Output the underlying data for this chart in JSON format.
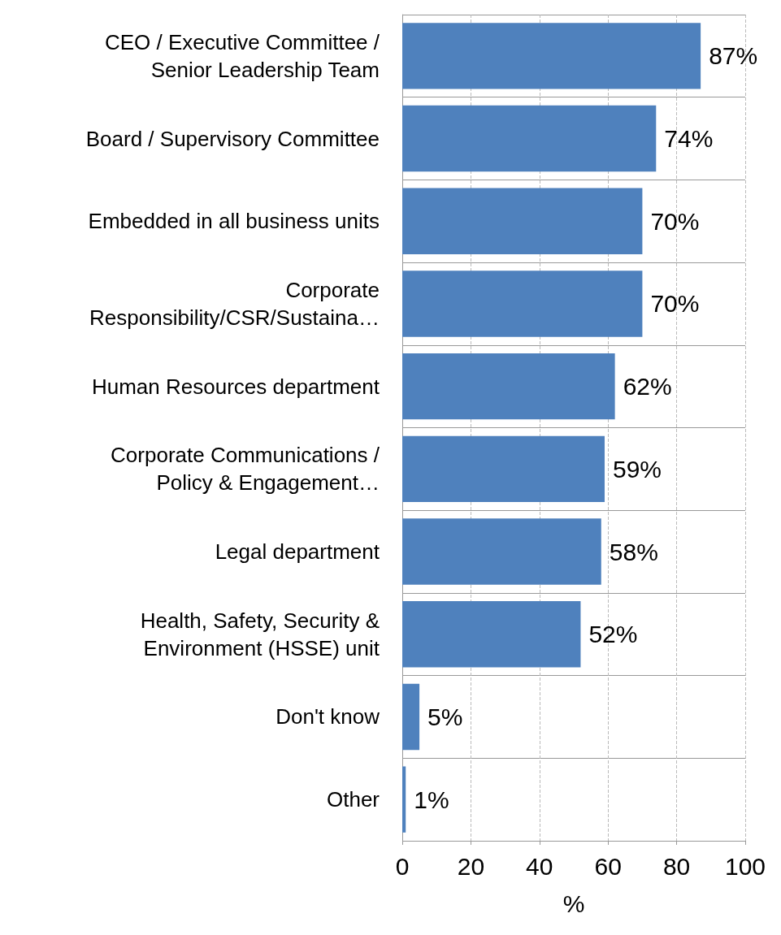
{
  "chart_data": {
    "type": "bar",
    "orientation": "horizontal",
    "xlabel": "%",
    "categories": [
      "CEO / Executive Committee /\nSenior Leadership Team",
      "Board / Supervisory Committee",
      "Embedded in all business units",
      "Corporate\nResponsibility/CSR/Sustaina…",
      "Human Resources department",
      "Corporate Communications /\nPolicy & Engagement…",
      "Legal department",
      "Health, Safety, Security &\nEnvironment (HSSE) unit",
      "Don't know",
      "Other"
    ],
    "values": [
      87,
      74,
      70,
      70,
      62,
      59,
      58,
      52,
      5,
      1
    ],
    "value_labels": [
      "87%",
      "74%",
      "70%",
      "70%",
      "62%",
      "59%",
      "58%",
      "52%",
      "5%",
      "1%"
    ],
    "color": "#4f81bd",
    "xlim": [
      0,
      100
    ],
    "xticks": [
      0,
      20,
      40,
      60,
      80,
      100
    ],
    "grid": true
  }
}
